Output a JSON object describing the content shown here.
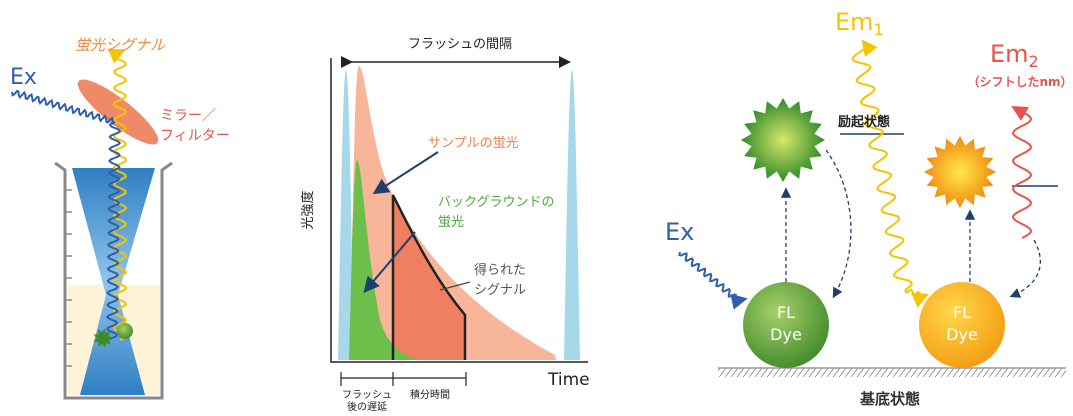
{
  "left": {
    "signal_label": "蛍光シグナル",
    "ex_label": "Ex",
    "mirror_label": [
      "ミラー／",
      "フィルター"
    ]
  },
  "middle": {
    "flash_interval": "フラッシュの間隔",
    "y_axis": "光強度",
    "x_axis": "Time",
    "sample": "サンプルの蛍光",
    "background": [
      "バックグラウンドの",
      "蛍光"
    ],
    "signal": [
      "得られた",
      "シグナル"
    ],
    "delay": [
      "フラッシュ",
      "後の遅延"
    ],
    "integration": "積分時間"
  },
  "right": {
    "em1": {
      "text": "Em",
      "sub": "1"
    },
    "em2": {
      "text": "Em",
      "sub": "2"
    },
    "em2_note": "（シフトしたnm）",
    "excited": "励起状態",
    "ex": "Ex",
    "dye_left": [
      "FL",
      "Dye"
    ],
    "dye_right": [
      "FL",
      "Dye"
    ],
    "ground": "基底状態"
  }
}
